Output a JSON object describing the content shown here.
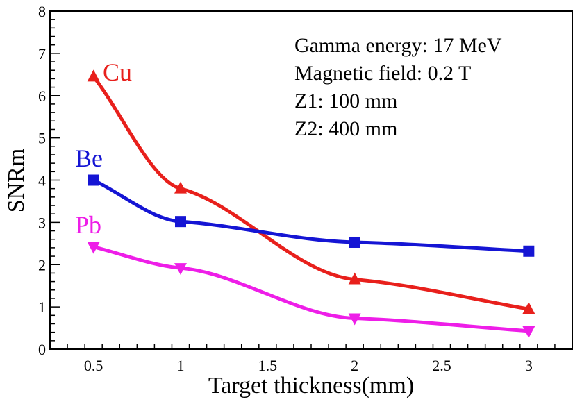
{
  "chart_data": {
    "type": "line",
    "xlabel": "Target thickness(mm)",
    "ylabel": "SNRm",
    "xlim": [
      0.25,
      3.25
    ],
    "ylim": [
      0,
      8
    ],
    "x_ticks": [
      "0.5",
      "1",
      "1.5",
      "2",
      "2.5",
      "3"
    ],
    "x_tick_values": [
      0.5,
      1,
      1.5,
      2,
      2.5,
      3
    ],
    "y_ticks": [
      "0",
      "1",
      "2",
      "3",
      "4",
      "5",
      "6",
      "7",
      "8"
    ],
    "y_tick_values": [
      0,
      1,
      2,
      3,
      4,
      5,
      6,
      7,
      8
    ],
    "grid": false,
    "annotations": [
      "Gamma energy: 17 MeV",
      "Magnetic field: 0.2 T",
      "Z1: 100 mm",
      "Z2: 400 mm"
    ],
    "series": [
      {
        "name": "Cu",
        "color": "#e8201c",
        "marker": "triangle-up",
        "x": [
          0.5,
          1,
          2,
          3
        ],
        "values": [
          6.45,
          3.8,
          1.65,
          0.95
        ]
      },
      {
        "name": "Be",
        "color": "#1515d4",
        "marker": "square",
        "x": [
          0.5,
          1,
          2,
          3
        ],
        "values": [
          4.0,
          3.02,
          2.53,
          2.32
        ]
      },
      {
        "name": "Pb",
        "color": "#ee1ee8",
        "marker": "triangle-down",
        "x": [
          0.5,
          1,
          2,
          3
        ],
        "values": [
          2.42,
          1.92,
          0.73,
          0.43
        ]
      }
    ]
  }
}
